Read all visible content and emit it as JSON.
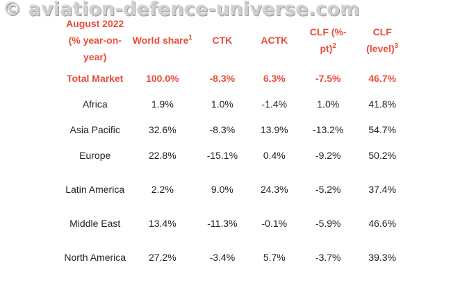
{
  "watermark": "© aviation-defence-universe.com",
  "headers": {
    "period": "August 2022 (% year-on-year)",
    "world_share": "World share",
    "world_share_note": "1",
    "ctk": "CTK",
    "actk": "ACTK",
    "clf_pt": "CLF (%-pt)",
    "clf_pt_note": "2",
    "clf_level": "CLF (level)",
    "clf_level_note": "3"
  },
  "rows": [
    {
      "region": "Total Market",
      "world_share": "100.0%",
      "ctk": "-8.3%",
      "actk": "6.3%",
      "clf_pt": "-7.5%",
      "clf_level": "46.7%"
    },
    {
      "region": "Africa",
      "world_share": "1.9%",
      "ctk": "1.0%",
      "actk": "-1.4%",
      "clf_pt": "1.0%",
      "clf_level": "41.8%"
    },
    {
      "region": "Asia Pacific",
      "world_share": "32.6%",
      "ctk": "-8.3%",
      "actk": "13.9%",
      "clf_pt": "-13.2%",
      "clf_level": "54.7%"
    },
    {
      "region": "Europe",
      "world_share": "22.8%",
      "ctk": "-15.1%",
      "actk": "0.4%",
      "clf_pt": "-9.2%",
      "clf_level": "50.2%"
    },
    {
      "region": "Latin America",
      "world_share": "2.2%",
      "ctk": "9.0%",
      "actk": "24.3%",
      "clf_pt": "-5.2%",
      "clf_level": "37.4%"
    },
    {
      "region": "Middle East",
      "world_share": "13.4%",
      "ctk": "-11.3%",
      "actk": "-0.1%",
      "clf_pt": "-5.9%",
      "clf_level": "46.6%"
    },
    {
      "region": "North America",
      "world_share": "27.2%",
      "ctk": "-3.4%",
      "actk": "5.7%",
      "clf_pt": "-3.7%",
      "clf_level": "39.3%"
    }
  ],
  "colors": {
    "header_accent": "#e94c3a",
    "body_text": "#222222",
    "watermark": "#cfcfcf"
  }
}
